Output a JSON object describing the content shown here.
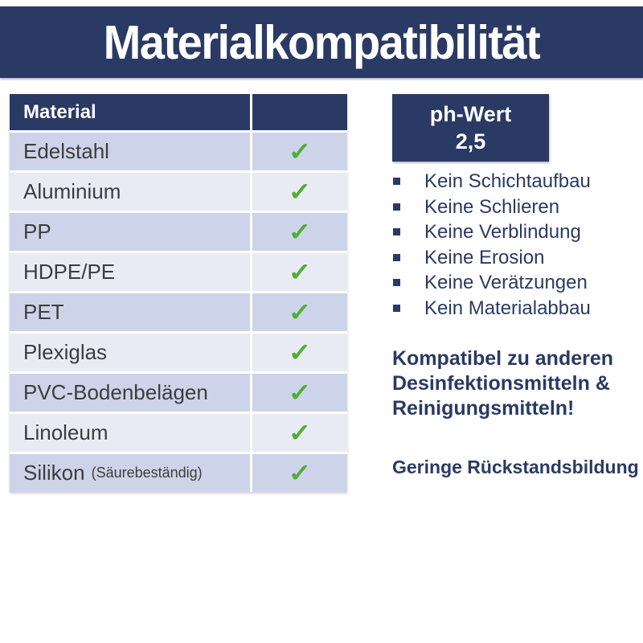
{
  "title": "Materialkompatibilität",
  "table": {
    "header": {
      "material": "Material",
      "check": ""
    },
    "check_symbol": "✓",
    "rows": [
      {
        "label": "Edelstahl",
        "note": ""
      },
      {
        "label": "Aluminium",
        "note": ""
      },
      {
        "label": "PP",
        "note": ""
      },
      {
        "label": "HDPE/PE",
        "note": ""
      },
      {
        "label": "PET",
        "note": ""
      },
      {
        "label": "Plexiglas",
        "note": ""
      },
      {
        "label": "PVC-Bodenbelägen",
        "note": ""
      },
      {
        "label": "Linoleum",
        "note": ""
      },
      {
        "label": "Silikon",
        "note": "(Säurebeständig)"
      }
    ]
  },
  "ph_box": {
    "line1": "ph-Wert",
    "line2": "2,5"
  },
  "bullets": [
    "Kein Schichtaufbau",
    "Keine Schlieren",
    "Keine Verblindung",
    "Keine Erosion",
    "Keine Verätzungen",
    "Kein Materialabbau"
  ],
  "compatibility_note": {
    "lines": [
      "Kompatibel zu anderen",
      "Desinfektionsmitteln &",
      "Reinigungsmitteln!"
    ]
  },
  "residue_note": "Geringe Rückstandsbildung",
  "colors": {
    "navy": "#2a3a64",
    "row_dark": "#cdd4e9",
    "row_light": "#e9ebf4",
    "check_green": "#4fae33",
    "row_text": "#3d3d3d",
    "background": "#ffffff"
  }
}
